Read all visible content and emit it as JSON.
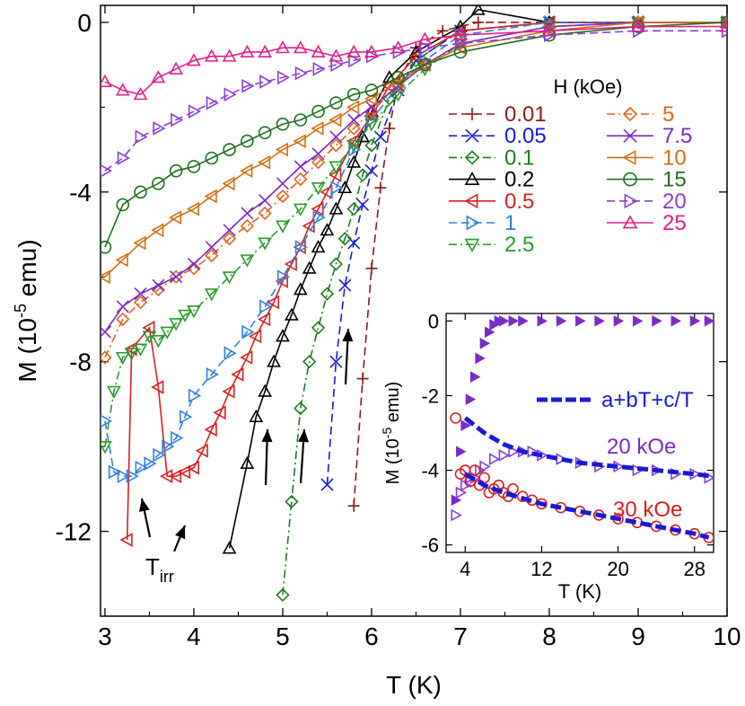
{
  "chart_data": [
    {
      "type": "line",
      "xlabel": "T (K)",
      "ylabel_prefix": "M (10",
      "ylabel_exp": "-5",
      "ylabel_suffix": " emu)",
      "xlim": [
        2.95,
        10.0
      ],
      "ylim": [
        -14.0,
        0.4
      ],
      "xticks": [
        "3",
        "4",
        "5",
        "6",
        "7",
        "8",
        "9",
        "10"
      ],
      "yticks": [
        "0",
        "-4",
        "-8",
        "-12"
      ],
      "legend_title": "H (kOe)",
      "annotation_text": "T",
      "annotation_sub": "irr",
      "series": [
        {
          "name": "0.01",
          "color": "#8b1a1a",
          "marker": "plus",
          "dash": "dash",
          "x": [
            5.8,
            5.9,
            6.0,
            6.1,
            6.2,
            6.3,
            6.5,
            6.8,
            7.2,
            8.0,
            9.0,
            10.0
          ],
          "y": [
            -11.4,
            -8.4,
            -5.8,
            -3.9,
            -2.5,
            -1.4,
            -0.6,
            -0.2,
            0.0,
            0.0,
            0.0,
            0.0
          ]
        },
        {
          "name": "0.05",
          "color": "#1a1ad6",
          "marker": "x",
          "dash": "dash",
          "x": [
            5.5,
            5.6,
            5.7,
            5.8,
            5.9,
            6.0,
            6.1,
            6.3,
            6.5,
            7.0,
            8.0,
            9.0,
            10.0
          ],
          "y": [
            -10.9,
            -8.0,
            -6.2,
            -5.2,
            -4.3,
            -3.5,
            -2.7,
            -1.6,
            -0.9,
            -0.2,
            0.0,
            0.0,
            0.0
          ]
        },
        {
          "name": "0.1",
          "color": "#1f7a1f",
          "marker": "diamond",
          "dash": "dashdot",
          "x": [
            5.0,
            5.1,
            5.2,
            5.3,
            5.4,
            5.5,
            5.6,
            5.7,
            5.8,
            5.9,
            6.0,
            6.2,
            6.5,
            7.0,
            8.0,
            9.0,
            10.0
          ],
          "y": [
            -13.5,
            -11.3,
            -9.1,
            -8.0,
            -7.2,
            -6.4,
            -5.7,
            -5.1,
            -4.4,
            -3.6,
            -2.9,
            -1.8,
            -0.9,
            -0.2,
            0.0,
            0.0,
            0.0
          ]
        },
        {
          "name": "0.2",
          "color": "#000000",
          "marker": "triangle-up",
          "dash": "solid",
          "x": [
            4.4,
            4.6,
            4.7,
            4.8,
            4.9,
            5.0,
            5.1,
            5.2,
            5.3,
            5.4,
            5.5,
            5.6,
            5.7,
            5.8,
            5.9,
            6.0,
            6.2,
            6.5,
            7.0,
            7.2,
            8.0,
            9.0,
            10.0
          ],
          "y": [
            -12.4,
            -10.4,
            -9.3,
            -8.7,
            -8.0,
            -7.4,
            -6.9,
            -6.3,
            -5.8,
            -5.3,
            -4.9,
            -4.4,
            -3.9,
            -3.3,
            -2.7,
            -2.1,
            -1.3,
            -0.7,
            -0.1,
            0.3,
            0.0,
            0.0,
            0.0
          ]
        },
        {
          "name": "0.5",
          "color": "#d62020",
          "marker": "triangle-left",
          "dash": "solid",
          "x": [
            3.25,
            3.3,
            3.5,
            3.6,
            3.7,
            3.8,
            3.9,
            4.0,
            4.1,
            4.2,
            4.3,
            4.4,
            4.5,
            4.6,
            4.7,
            4.8,
            4.9,
            5.0,
            5.1,
            5.2,
            5.3,
            5.4,
            5.5,
            5.6,
            5.8,
            6.0,
            6.2,
            6.5,
            7.0,
            8.0,
            9.0,
            10.0
          ],
          "y": [
            -12.2,
            -7.7,
            -7.2,
            -8.6,
            -10.7,
            -10.7,
            -10.6,
            -10.5,
            -10.1,
            -9.6,
            -9.2,
            -8.7,
            -8.3,
            -7.9,
            -7.4,
            -7.0,
            -6.6,
            -6.1,
            -5.7,
            -5.3,
            -4.8,
            -4.4,
            -4.0,
            -3.6,
            -2.8,
            -2.2,
            -1.5,
            -0.8,
            -0.2,
            0.0,
            0.0,
            0.0
          ]
        },
        {
          "name": "1",
          "color": "#2f7fe0",
          "marker": "triangle-right",
          "dash": "dash",
          "x": [
            3.0,
            3.1,
            3.2,
            3.3,
            3.4,
            3.5,
            3.6,
            3.7,
            3.8,
            3.9,
            4.0,
            4.2,
            4.4,
            4.6,
            4.8,
            5.0,
            5.2,
            5.4,
            5.6,
            5.8,
            6.0,
            6.3,
            6.6,
            7.0,
            8.0,
            9.0,
            10.0
          ],
          "y": [
            -9.4,
            -10.6,
            -10.7,
            -10.7,
            -10.5,
            -10.4,
            -10.2,
            -10.0,
            -9.8,
            -9.3,
            -8.8,
            -8.3,
            -7.8,
            -7.3,
            -6.7,
            -6.0,
            -5.3,
            -4.6,
            -3.9,
            -3.0,
            -2.3,
            -1.5,
            -0.9,
            -0.3,
            0.0,
            0.0,
            0.0
          ]
        },
        {
          "name": "2.5",
          "color": "#2a9a2a",
          "marker": "triangle-down",
          "dash": "dashdot",
          "x": [
            3.0,
            3.1,
            3.2,
            3.3,
            3.4,
            3.5,
            3.6,
            3.7,
            3.8,
            3.9,
            4.0,
            4.2,
            4.4,
            4.6,
            4.8,
            5.0,
            5.2,
            5.4,
            5.6,
            5.8,
            6.0,
            6.3,
            6.6,
            7.0,
            8.0,
            9.0,
            10.0
          ],
          "y": [
            -10.0,
            -8.7,
            -7.9,
            -7.8,
            -7.7,
            -7.4,
            -7.5,
            -7.3,
            -7.1,
            -6.9,
            -6.8,
            -6.4,
            -6.0,
            -5.6,
            -5.2,
            -4.8,
            -4.4,
            -3.9,
            -3.4,
            -2.9,
            -2.4,
            -1.7,
            -1.1,
            -0.5,
            -0.1,
            0.0,
            0.0
          ]
        },
        {
          "name": "5",
          "color": "#e0641e",
          "marker": "diamond",
          "dash": "dashdot",
          "x": [
            3.0,
            3.2,
            3.4,
            3.6,
            3.8,
            4.0,
            4.2,
            4.4,
            4.6,
            4.8,
            5.0,
            5.2,
            5.4,
            5.6,
            5.8,
            6.0,
            6.3,
            6.6,
            7.0,
            8.0,
            9.0,
            10.0
          ],
          "y": [
            -7.9,
            -7.0,
            -6.6,
            -6.3,
            -6.0,
            -5.8,
            -5.5,
            -5.1,
            -4.8,
            -4.5,
            -4.1,
            -3.7,
            -3.3,
            -2.9,
            -2.5,
            -2.1,
            -1.5,
            -1.0,
            -0.5,
            -0.1,
            0.0,
            0.0
          ]
        },
        {
          "name": "7.5",
          "color": "#7b2cc8",
          "marker": "x",
          "dash": "solid",
          "x": [
            3.0,
            3.2,
            3.4,
            3.6,
            3.8,
            4.0,
            4.2,
            4.4,
            4.6,
            4.8,
            5.0,
            5.2,
            5.4,
            5.6,
            5.8,
            6.0,
            6.3,
            6.6,
            7.0,
            8.0,
            9.0,
            10.0
          ],
          "y": [
            -7.3,
            -6.7,
            -6.4,
            -6.2,
            -6.0,
            -5.7,
            -5.3,
            -4.9,
            -4.5,
            -4.2,
            -3.8,
            -3.4,
            -3.1,
            -2.7,
            -2.3,
            -2.0,
            -1.5,
            -1.0,
            -0.5,
            -0.1,
            0.0,
            0.0
          ]
        },
        {
          "name": "10",
          "color": "#d07010",
          "marker": "triangle-left",
          "dash": "solid",
          "x": [
            3.0,
            3.2,
            3.4,
            3.6,
            3.8,
            4.0,
            4.2,
            4.4,
            4.6,
            4.8,
            5.0,
            5.2,
            5.4,
            5.6,
            5.8,
            6.0,
            6.3,
            6.6,
            7.0,
            8.0,
            9.0,
            10.0
          ],
          "y": [
            -6.0,
            -5.6,
            -5.2,
            -4.9,
            -4.6,
            -4.4,
            -4.1,
            -3.8,
            -3.5,
            -3.3,
            -3.0,
            -2.8,
            -2.5,
            -2.3,
            -2.0,
            -1.8,
            -1.4,
            -1.0,
            -0.6,
            -0.2,
            0.0,
            0.0
          ]
        },
        {
          "name": "15",
          "color": "#1f6f1f",
          "marker": "circle",
          "dash": "solid",
          "x": [
            3.0,
            3.2,
            3.4,
            3.6,
            3.8,
            4.0,
            4.2,
            4.4,
            4.6,
            4.8,
            5.0,
            5.2,
            5.4,
            5.6,
            5.8,
            6.0,
            6.3,
            6.6,
            7.0,
            8.0,
            9.0,
            10.0
          ],
          "y": [
            -5.3,
            -4.3,
            -4.0,
            -3.8,
            -3.5,
            -3.4,
            -3.2,
            -3.0,
            -2.8,
            -2.6,
            -2.4,
            -2.3,
            -2.1,
            -1.9,
            -1.7,
            -1.6,
            -1.3,
            -1.0,
            -0.7,
            -0.3,
            -0.1,
            0.0
          ]
        },
        {
          "name": "20",
          "color": "#8a3fd6",
          "marker": "triangle-right",
          "dash": "dash",
          "x": [
            3.0,
            3.2,
            3.4,
            3.6,
            3.8,
            4.0,
            4.2,
            4.4,
            4.6,
            4.8,
            5.0,
            5.2,
            5.4,
            5.6,
            5.8,
            6.0,
            6.3,
            6.6,
            7.0,
            8.0,
            9.0,
            10.0
          ],
          "y": [
            -3.5,
            -3.2,
            -2.7,
            -2.5,
            -2.3,
            -2.1,
            -1.9,
            -1.7,
            -1.5,
            -1.4,
            -1.3,
            -1.2,
            -1.1,
            -1.0,
            -0.9,
            -0.8,
            -0.7,
            -0.6,
            -0.5,
            -0.3,
            -0.2,
            -0.2
          ]
        },
        {
          "name": "25",
          "color": "#e0208a",
          "marker": "triangle-up",
          "dash": "solid",
          "x": [
            3.0,
            3.2,
            3.4,
            3.6,
            3.8,
            4.0,
            4.2,
            4.4,
            4.6,
            4.8,
            5.0,
            5.2,
            5.4,
            5.6,
            5.8,
            6.0,
            6.3,
            6.6,
            7.0,
            8.0,
            9.0,
            10.0
          ],
          "y": [
            -1.4,
            -1.6,
            -1.7,
            -1.3,
            -1.1,
            -0.9,
            -0.8,
            -0.8,
            -0.7,
            -0.7,
            -0.6,
            -0.6,
            -0.7,
            -0.8,
            -0.7,
            -0.7,
            -0.6,
            -0.4,
            -0.3,
            -0.2,
            -0.1,
            -0.1
          ]
        }
      ]
    },
    {
      "type": "scatter",
      "xlabel": "T (K)",
      "ylabel_prefix": "M (10",
      "ylabel_exp": "-5",
      "ylabel_suffix": " emu)",
      "xlim": [
        2,
        30
      ],
      "ylim": [
        -6.2,
        0.2
      ],
      "xticks": [
        "4",
        "12",
        "20",
        "28"
      ],
      "yticks": [
        "0",
        "-2",
        "-4",
        "-6"
      ],
      "legend_fit": "a+bT+c/T",
      "label_20": "20 kOe",
      "label_30": "30 kOe",
      "series": [
        {
          "name": "20 kOe",
          "color": "#7b2cc8",
          "marker": "triangle-right-filled",
          "x": [
            3.0,
            3.5,
            4.0,
            4.5,
            5.0,
            5.5,
            6.0,
            6.5,
            7.0,
            7.5,
            8.0,
            9.0,
            10.0,
            12.0,
            14.0,
            16.0,
            18.0,
            20.0,
            22.0,
            24.0,
            26.0,
            28.0,
            29.5
          ],
          "y": [
            -4.8,
            -3.5,
            -2.8,
            -2.1,
            -1.5,
            -1.0,
            -0.6,
            -0.3,
            -0.1,
            0.0,
            0.0,
            0.0,
            0.0,
            0.0,
            0.0,
            0.0,
            0.0,
            0.0,
            0.0,
            0.0,
            0.0,
            0.0,
            0.0
          ]
        },
        {
          "name": "20 kOe",
          "color": "#8a3fd6",
          "marker": "triangle-right",
          "x": [
            3.0,
            3.5,
            4.0,
            4.5,
            5.0,
            5.5,
            6.0,
            7.0,
            8.0,
            9.0,
            10.0,
            11.0,
            12.0,
            14.0,
            16.0,
            18.0,
            20.0,
            22.0,
            24.0,
            26.0,
            28.0,
            29.5
          ],
          "y": [
            -5.2,
            -4.6,
            -4.4,
            -4.2,
            -4.2,
            -4.0,
            -3.9,
            -3.7,
            -3.6,
            -3.5,
            -3.5,
            -3.5,
            -3.6,
            -3.7,
            -3.8,
            -3.9,
            -3.9,
            -4.0,
            -4.0,
            -4.1,
            -4.1,
            -4.2
          ]
        },
        {
          "name": "30 kOe",
          "color": "#d62020",
          "marker": "circle",
          "x": [
            3.0,
            3.5,
            4.0,
            4.5,
            5.0,
            5.5,
            6.0,
            6.5,
            7.0,
            7.5,
            8.0,
            8.5,
            9.0,
            10.0,
            11.0,
            12.0,
            14.0,
            16.0,
            18.0,
            20.0,
            22.0,
            24.0,
            26.0,
            28.0,
            29.5
          ],
          "y": [
            -2.6,
            -4.1,
            -4.0,
            -4.3,
            -4.0,
            -4.4,
            -4.2,
            -4.6,
            -4.5,
            -4.4,
            -4.6,
            -4.7,
            -4.5,
            -4.7,
            -4.8,
            -4.9,
            -5.0,
            -5.1,
            -5.2,
            -5.3,
            -5.4,
            -5.5,
            -5.6,
            -5.7,
            -5.8
          ]
        }
      ],
      "fit": {
        "name": "a+bT+c/T",
        "color": "#1a1ad6",
        "x": [
          4.0,
          6.0,
          8.0,
          10.0,
          12.0,
          14.0,
          16.0,
          18.0,
          20.0,
          22.0,
          24.0,
          26.0,
          28.0,
          29.5
        ],
        "y_20": [
          -2.6,
          -3.0,
          -3.3,
          -3.5,
          -3.6,
          -3.7,
          -3.8,
          -3.85,
          -3.9,
          -3.95,
          -4.0,
          -4.05,
          -4.1,
          -4.15
        ],
        "y_30": [
          -4.1,
          -4.4,
          -4.6,
          -4.75,
          -4.9,
          -5.0,
          -5.1,
          -5.2,
          -5.3,
          -5.4,
          -5.5,
          -5.6,
          -5.7,
          -5.8
        ]
      }
    }
  ]
}
